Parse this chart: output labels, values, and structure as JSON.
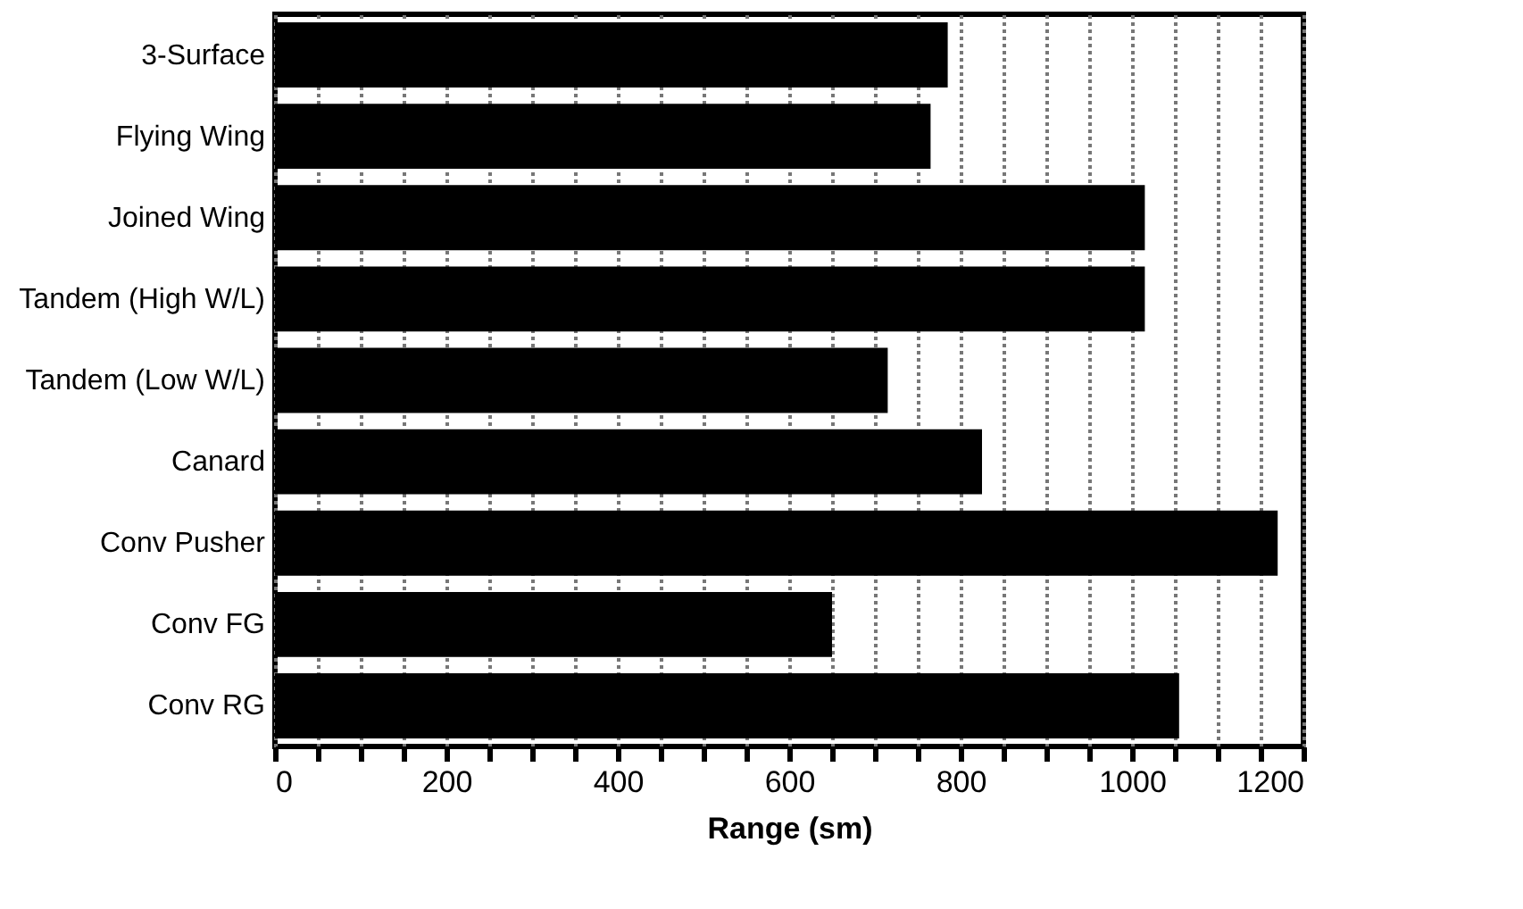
{
  "chart_data": {
    "type": "bar",
    "orientation": "horizontal",
    "xlabel": "Range  (sm)",
    "categories": [
      "3-Surface",
      "Flying Wing",
      "Joined Wing",
      "Tandem  (High W/L)",
      "Tandem  (Low W/L)",
      "Canard",
      "Conv Pusher",
      "Conv FG",
      "Conv RG"
    ],
    "values": [
      785,
      765,
      1015,
      1015,
      715,
      825,
      1170,
      650,
      1055
    ],
    "color": "#000000",
    "xlim": [
      0,
      1200
    ],
    "xticks": [
      0,
      {
        "value": 50,
        "label": null
      },
      {
        "value": 100,
        "label": null
      },
      {
        "value": 150,
        "label": null
      },
      200,
      {
        "value": 250,
        "label": null
      },
      {
        "value": 300,
        "label": null
      },
      {
        "value": 350,
        "label": null
      },
      400,
      {
        "value": 450,
        "label": null
      },
      {
        "value": 500,
        "label": null
      },
      {
        "value": 550,
        "label": null
      },
      600,
      {
        "value": 650,
        "label": null
      },
      {
        "value": 700,
        "label": null
      },
      {
        "value": 750,
        "label": null
      },
      800,
      {
        "value": 850,
        "label": null
      },
      {
        "value": 900,
        "label": null
      },
      {
        "value": 950,
        "label": null
      },
      1000,
      {
        "value": 1050,
        "label": null
      },
      {
        "value": 1100,
        "label": null
      },
      {
        "value": 1150,
        "label": null
      },
      1200
    ],
    "grid": "x"
  }
}
